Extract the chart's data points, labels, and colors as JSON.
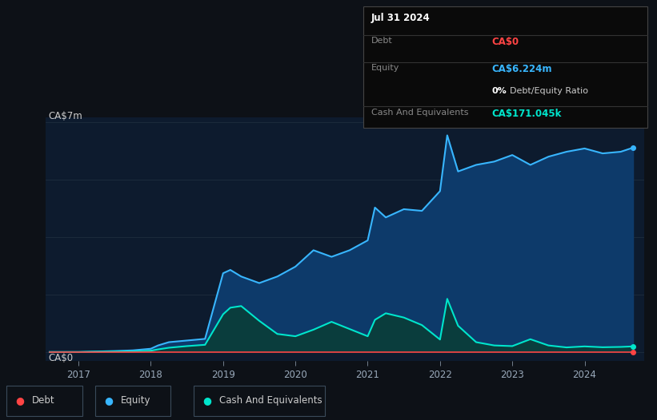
{
  "background_color": "#0d1117",
  "plot_bg_color": "#0d1b2e",
  "debt_color": "#ff4444",
  "equity_color": "#38b6ff",
  "cash_color": "#00e5cc",
  "equity_fill": "#0d3a6a",
  "cash_fill": "#0a3d3d",
  "x_ticks": [
    2017,
    2018,
    2019,
    2020,
    2021,
    2022,
    2023,
    2024
  ],
  "y_max": 7000000,
  "info_box": {
    "date": "Jul 31 2024",
    "debt_label": "Debt",
    "debt_value": "CA$0",
    "debt_color": "#ff4444",
    "equity_label": "Equity",
    "equity_value": "CA$6.224m",
    "equity_color": "#38b6ff",
    "ratio_bold": "0%",
    "ratio_rest": " Debt/Equity Ratio",
    "cash_label": "Cash And Equivalents",
    "cash_value": "CA$171.045k",
    "cash_color": "#00e5cc",
    "bg_color": "#0a0a0a",
    "border_color": "#444444"
  },
  "legend_entries": [
    {
      "label": "Debt",
      "color": "#ff4444"
    },
    {
      "label": "Equity",
      "color": "#38b6ff"
    },
    {
      "label": "Cash And Equivalents",
      "color": "#00e5cc"
    }
  ],
  "time_points": [
    2016.6,
    2016.8,
    2017.0,
    2017.1,
    2017.25,
    2017.5,
    2017.75,
    2018.0,
    2018.1,
    2018.25,
    2018.5,
    2018.75,
    2019.0,
    2019.1,
    2019.25,
    2019.5,
    2019.75,
    2020.0,
    2020.25,
    2020.5,
    2020.75,
    2021.0,
    2021.1,
    2021.25,
    2021.5,
    2021.75,
    2022.0,
    2022.1,
    2022.25,
    2022.5,
    2022.75,
    2023.0,
    2023.25,
    2023.5,
    2023.75,
    2024.0,
    2024.25,
    2024.5,
    2024.67
  ],
  "equity_values": [
    0,
    0,
    0,
    5000,
    15000,
    30000,
    50000,
    100000,
    200000,
    300000,
    350000,
    400000,
    2400000,
    2500000,
    2300000,
    2100000,
    2300000,
    2600000,
    3100000,
    2900000,
    3100000,
    3400000,
    4400000,
    4100000,
    4350000,
    4300000,
    4900000,
    6600000,
    5500000,
    5700000,
    5800000,
    6000000,
    5700000,
    5950000,
    6100000,
    6200000,
    6050000,
    6100000,
    6224000
  ],
  "cash_values": [
    0,
    0,
    0,
    5000,
    10000,
    15000,
    20000,
    40000,
    80000,
    130000,
    180000,
    220000,
    1150000,
    1350000,
    1400000,
    950000,
    550000,
    480000,
    680000,
    920000,
    700000,
    480000,
    980000,
    1180000,
    1050000,
    820000,
    380000,
    1620000,
    800000,
    300000,
    200000,
    180000,
    390000,
    200000,
    140000,
    171045,
    145000,
    155000,
    171045
  ],
  "debt_values": [
    0,
    0,
    0,
    0,
    0,
    0,
    0,
    0,
    0,
    0,
    0,
    0,
    0,
    0,
    0,
    0,
    0,
    0,
    0,
    0,
    0,
    0,
    0,
    0,
    0,
    0,
    0,
    0,
    0,
    0,
    0,
    0,
    0,
    0,
    0,
    0,
    0,
    0,
    0
  ]
}
